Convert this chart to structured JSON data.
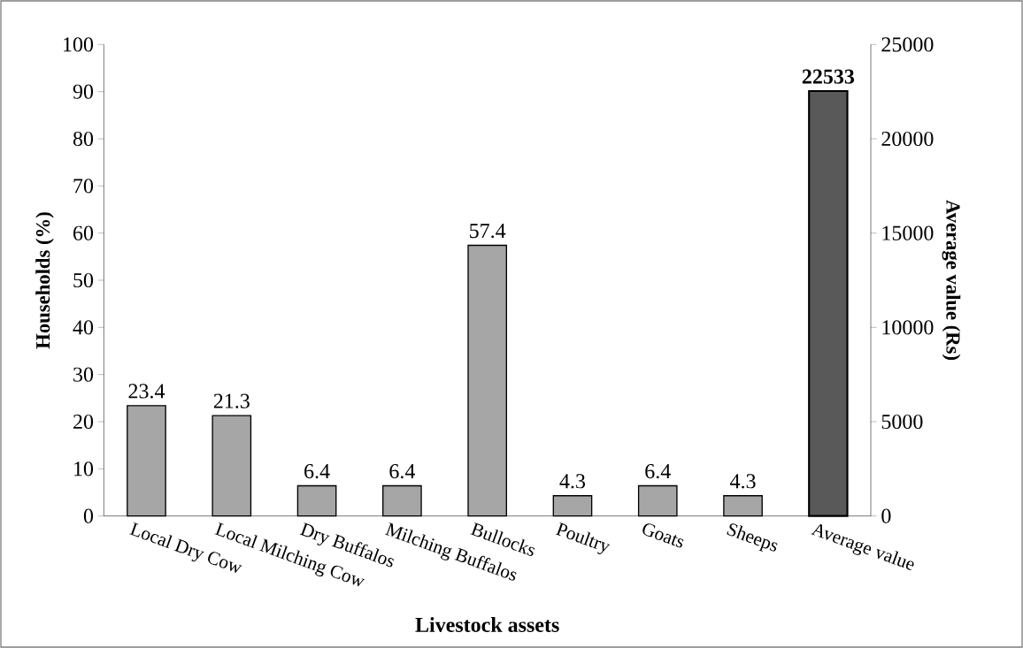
{
  "chart_data": {
    "type": "bar",
    "xlabel": "Livestock assets",
    "ylabel": "Households (%)",
    "y2label": "Average value (Rs)",
    "categories": [
      "Local Dry Cow",
      "Local Milching Cow",
      "Dry Buffalos",
      "Milching Buffalos",
      "Bullocks",
      "Poultry",
      "Goats",
      "Sheeps",
      "Average value"
    ],
    "series": [
      {
        "color": "#a6a6a6",
        "values": [
          23.4,
          21.3,
          6.4,
          6.4,
          57.4,
          4.3,
          6.4,
          4.3,
          null
        ]
      },
      {
        "color": "#595959",
        "axis": "y2",
        "values": [
          null,
          null,
          null,
          null,
          null,
          null,
          null,
          null,
          22533
        ]
      }
    ],
    "ylim": [
      0,
      100
    ],
    "yticks": [
      0,
      10,
      20,
      30,
      40,
      50,
      60,
      70,
      80,
      90,
      100
    ],
    "y2lim": [
      0,
      25000
    ],
    "y2ticks": [
      0,
      5000,
      10000,
      15000,
      20000,
      25000
    ],
    "data_labels": true
  }
}
